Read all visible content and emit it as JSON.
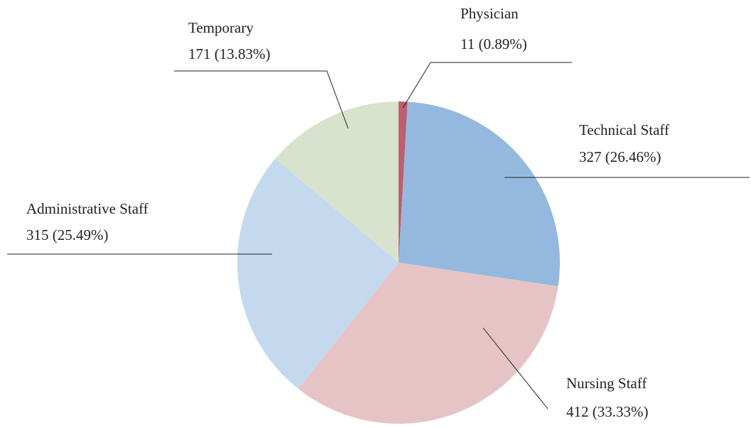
{
  "chart_data": {
    "type": "pie",
    "categories": [
      "Physician",
      "Technical Staff",
      "Nursing Staff",
      "Administrative Staff",
      "Temporary"
    ],
    "values": [
      11,
      327,
      412,
      315,
      171
    ],
    "value_labels": [
      "11 (0.89%)",
      "327 (26.46%)",
      "412 (33.33%)",
      "315 (25.49%)",
      "171 (13.83%)"
    ],
    "colors": [
      "#bd5f70",
      "#95b9de",
      "#e6c4c6",
      "#c4d8ee",
      "#d7e3cc"
    ]
  }
}
